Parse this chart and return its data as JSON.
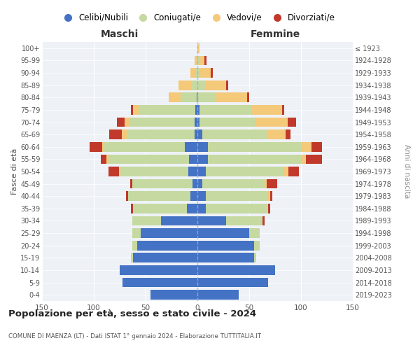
{
  "age_groups": [
    "0-4",
    "5-9",
    "10-14",
    "15-19",
    "20-24",
    "25-29",
    "30-34",
    "35-39",
    "40-44",
    "45-49",
    "50-54",
    "55-59",
    "60-64",
    "65-69",
    "70-74",
    "75-79",
    "80-84",
    "85-89",
    "90-94",
    "95-99",
    "100+"
  ],
  "birth_years": [
    "2019-2023",
    "2014-2018",
    "2009-2013",
    "2004-2008",
    "1999-2003",
    "1994-1998",
    "1989-1993",
    "1984-1988",
    "1979-1983",
    "1974-1978",
    "1969-1973",
    "1964-1968",
    "1959-1963",
    "1954-1958",
    "1949-1953",
    "1944-1948",
    "1939-1943",
    "1934-1938",
    "1929-1933",
    "1924-1928",
    "≤ 1923"
  ],
  "male_celibi": [
    45,
    72,
    75,
    62,
    58,
    55,
    35,
    10,
    7,
    5,
    9,
    8,
    12,
    3,
    3,
    2,
    1,
    0,
    0,
    0,
    0
  ],
  "male_coniugati": [
    0,
    0,
    0,
    2,
    5,
    8,
    28,
    52,
    60,
    58,
    65,
    78,
    78,
    65,
    62,
    55,
    15,
    6,
    2,
    1,
    0
  ],
  "male_vedovi": [
    0,
    0,
    0,
    0,
    0,
    0,
    0,
    0,
    0,
    0,
    2,
    2,
    2,
    5,
    5,
    5,
    12,
    12,
    5,
    2,
    0
  ],
  "male_divorziati": [
    0,
    0,
    0,
    0,
    0,
    0,
    0,
    2,
    2,
    2,
    10,
    5,
    12,
    12,
    8,
    2,
    0,
    0,
    0,
    0,
    0
  ],
  "female_nubili": [
    40,
    68,
    75,
    55,
    55,
    50,
    28,
    8,
    8,
    5,
    8,
    10,
    10,
    5,
    2,
    2,
    0,
    0,
    0,
    0,
    0
  ],
  "female_coniugate": [
    0,
    0,
    0,
    2,
    5,
    10,
    35,
    60,
    60,
    60,
    75,
    90,
    90,
    62,
    55,
    50,
    18,
    8,
    3,
    2,
    0
  ],
  "female_vedove": [
    0,
    0,
    0,
    0,
    0,
    0,
    0,
    0,
    2,
    2,
    5,
    5,
    10,
    18,
    30,
    30,
    30,
    20,
    10,
    5,
    2
  ],
  "female_divorziate": [
    0,
    0,
    0,
    0,
    0,
    0,
    2,
    2,
    2,
    10,
    10,
    15,
    10,
    5,
    8,
    2,
    2,
    2,
    2,
    2,
    0
  ],
  "colors": {
    "celibi_nubili": "#4472c4",
    "coniugati": "#c5d9a0",
    "vedovi": "#f5c97a",
    "divorziati": "#c0392b"
  },
  "title": "Popolazione per età, sesso e stato civile - 2024",
  "subtitle": "COMUNE DI MAENZA (LT) - Dati ISTAT 1° gennaio 2024 - Elaborazione TUTTITALIA.IT",
  "xlabel_left": "Maschi",
  "xlabel_right": "Femmine",
  "ylabel_left": "Fasce di età",
  "ylabel_right": "Anni di nascita",
  "xlim": 150,
  "legend_labels": [
    "Celibi/Nubili",
    "Coniugati/e",
    "Vedovi/e",
    "Divorziati/e"
  ],
  "background_color": "#ffffff",
  "plot_bg": "#eef2f7"
}
